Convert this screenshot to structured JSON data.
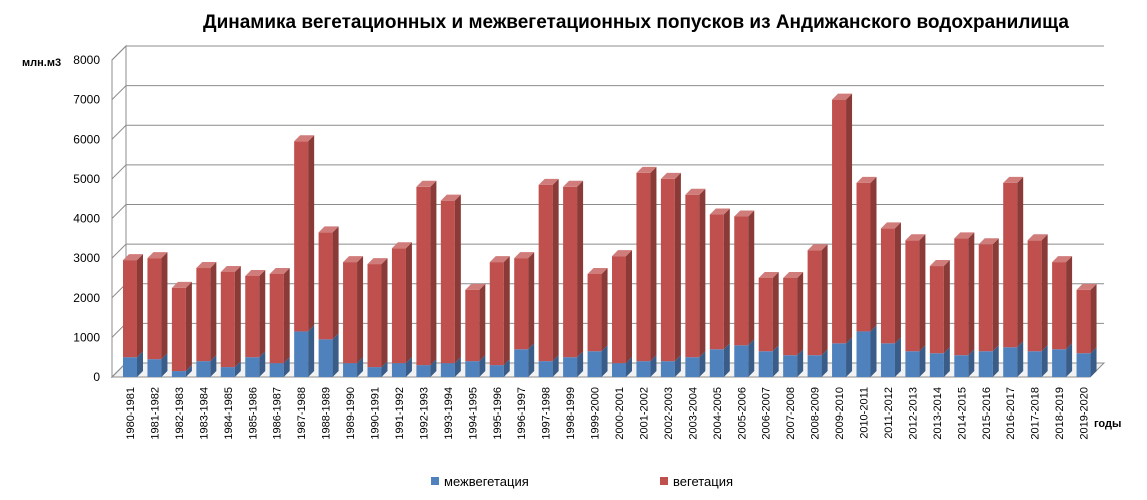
{
  "chart_data": {
    "type": "bar",
    "stacked": true,
    "three_d": true,
    "title": "Динамика вегетационных и межвегетационных попусков из Андижанского водохранилища",
    "ylabel": "млн.м3",
    "xlabel": "годы",
    "ylim": [
      0,
      8000
    ],
    "yticks": [
      "0",
      "1000",
      "2000",
      "3000",
      "4000",
      "5000",
      "6000",
      "7000",
      "8000"
    ],
    "grid": true,
    "legend_position": "bottom",
    "categories": [
      "1980-1981",
      "1981-1982",
      "1982-1983",
      "1983-1984",
      "1984-1985",
      "1985-1986",
      "1986-1987",
      "1987-1988",
      "1988-1989",
      "1989-1990",
      "1990-1991",
      "1991-1992",
      "1992-1993",
      "1993-1994",
      "1994-1995",
      "1995-1996",
      "1996-1997",
      "1997-1998",
      "1998-1999",
      "1999-2000",
      "2000-2001",
      "2001-2002",
      "2002-2003",
      "2003-2004",
      "2004-2005",
      "2005-2006",
      "2006-2007",
      "2007-2008",
      "2008-2009",
      "2009-2010",
      "2010-2011",
      "2011-2012",
      "2012-2013",
      "2013-2014",
      "2014-2015",
      "2015-2016",
      "2016-2017",
      "2017-2018",
      "2018-2019",
      "2019-2020"
    ],
    "series": [
      {
        "name": "межвегетация",
        "color": "#4f81bd",
        "values": [
          500,
          450,
          150,
          400,
          250,
          500,
          350,
          1150,
          950,
          350,
          250,
          350,
          300,
          350,
          400,
          300,
          700,
          400,
          500,
          650,
          350,
          400,
          400,
          500,
          700,
          800,
          650,
          550,
          550,
          850,
          1150,
          850,
          650,
          600,
          550,
          650,
          750,
          650,
          700,
          600
        ]
      },
      {
        "name": "вегетация",
        "color": "#c0504d",
        "values": [
          2450,
          2550,
          2100,
          2350,
          2400,
          2050,
          2250,
          4800,
          2700,
          2550,
          2600,
          2900,
          4500,
          4100,
          1800,
          2600,
          2300,
          4450,
          4300,
          1950,
          2700,
          4750,
          4600,
          4100,
          3400,
          3250,
          1850,
          1950,
          2650,
          6150,
          3750,
          2900,
          2800,
          2200,
          2950,
          2700,
          4150,
          2800,
          2200,
          1600
        ]
      }
    ]
  }
}
